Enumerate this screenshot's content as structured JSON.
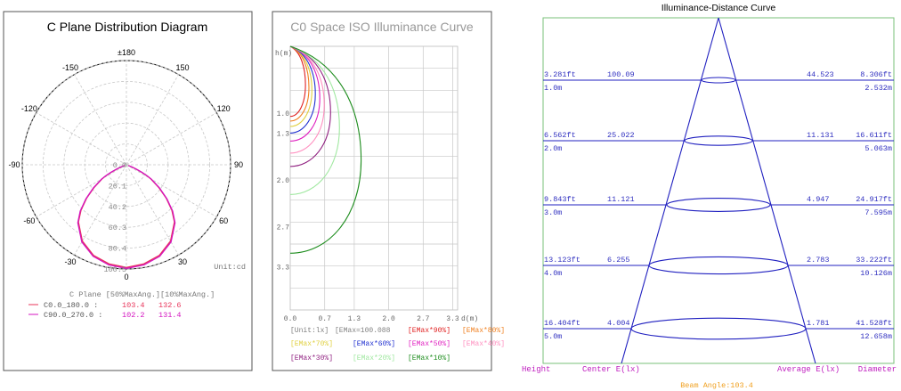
{
  "chart_data": [
    {
      "type": "polar",
      "title": "C Plane Distribution Diagram",
      "angle_labels": [
        "±180",
        "150",
        "120",
        "90",
        "60",
        "30",
        "0",
        "-30",
        "-60",
        "-90",
        "-120",
        "-150"
      ],
      "angle_values": [
        180,
        150,
        120,
        90,
        60,
        30,
        0,
        -30,
        -60,
        -90,
        -120,
        -150
      ],
      "radial_ticks": [
        "0.0",
        "20.1",
        "40.2",
        "60.3",
        "80.4",
        "100.5"
      ],
      "radial_max": 100.5,
      "unit": "Unit:cd",
      "table_header": "C Plane  [50%MaxAng.][10%MaxAng.]",
      "series": [
        {
          "name": "C0.0_180.0  :",
          "v50": "103.4",
          "v10": "132.6",
          "color": "#e8345a",
          "points": [
            [
              0,
              99
            ],
            [
              10,
              97
            ],
            [
              20,
              93
            ],
            [
              30,
              85
            ],
            [
              40,
              72
            ],
            [
              45,
              62
            ],
            [
              50,
              50
            ],
            [
              55,
              38
            ],
            [
              60,
              27
            ],
            [
              62,
              22
            ],
            [
              64,
              16
            ],
            [
              66,
              10
            ],
            [
              68,
              5
            ],
            [
              70,
              2
            ]
          ]
        },
        {
          "name": "C90.0_270.0 :",
          "v50": "102.2",
          "v10": "131.4",
          "color": "#d414c0",
          "points": [
            [
              0,
              100
            ],
            [
              10,
              98
            ],
            [
              20,
              94
            ],
            [
              30,
              86
            ],
            [
              40,
              73
            ],
            [
              45,
              63
            ],
            [
              50,
              51
            ],
            [
              55,
              39
            ],
            [
              60,
              28
            ],
            [
              62,
              23
            ],
            [
              64,
              17
            ],
            [
              66,
              11
            ],
            [
              68,
              6
            ],
            [
              70,
              2
            ]
          ]
        }
      ]
    },
    {
      "type": "line",
      "title": "C0 Space ISO Illuminance Curve",
      "ylabel": "h(m)",
      "xlabel": "d(m)",
      "xticks": [
        "0.0",
        "0.7",
        "1.3",
        "2.0",
        "2.7",
        "3.3"
      ],
      "xtick_values": [
        0,
        0.7,
        1.3,
        2.0,
        2.7,
        3.3
      ],
      "yticks": [
        "1.0",
        "1.3",
        "2.0",
        "2.7",
        "3.3"
      ],
      "ytick_values": [
        1.0,
        1.3,
        2.0,
        2.7,
        3.3
      ],
      "xlim": [
        0,
        3.4
      ],
      "ylim": [
        0,
        3.95
      ],
      "legend": [
        {
          "label": "[Unit:lx]",
          "color": "#808080"
        },
        {
          "label": "[EMax=100.088",
          "color": "#808080"
        },
        {
          "label": "[EMax*90%]",
          "color": "#e02020"
        },
        {
          "label": "[EMax*80%]",
          "color": "#f08020"
        },
        {
          "label": "[EMax*70%]",
          "color": "#e0d040"
        },
        {
          "label": "[EMax*60%]",
          "color": "#2030d0"
        },
        {
          "label": "[EMax*50%]",
          "color": "#e020c0"
        },
        {
          "label": "[EMax*40%]",
          "color": "#ff90c0"
        },
        {
          "label": "[EMax*30%]",
          "color": "#902080"
        },
        {
          "label": "[EMax*20%]",
          "color": "#a0e8a0"
        },
        {
          "label": "[EMax*10%]",
          "color": "#1c8c1c"
        }
      ],
      "series": [
        {
          "name": "EMax*90%",
          "color": "#e02020",
          "max_x": 0.31,
          "max_y": 1.05
        },
        {
          "name": "EMax*80%",
          "color": "#f08020",
          "max_x": 0.38,
          "max_y": 1.12
        },
        {
          "name": "EMax*70%",
          "color": "#e0d040",
          "max_x": 0.44,
          "max_y": 1.2
        },
        {
          "name": "EMax*60%",
          "color": "#2030d0",
          "max_x": 0.51,
          "max_y": 1.3
        },
        {
          "name": "EMax*50%",
          "color": "#e020c0",
          "max_x": 0.6,
          "max_y": 1.42
        },
        {
          "name": "EMax*40%",
          "color": "#ff90c0",
          "max_x": 0.69,
          "max_y": 1.6
        },
        {
          "name": "EMax*30%",
          "color": "#902080",
          "max_x": 0.82,
          "max_y": 1.8
        },
        {
          "name": "EMax*20%",
          "color": "#a0e8a0",
          "max_x": 1.0,
          "max_y": 2.22
        },
        {
          "name": "EMax*10%",
          "color": "#1c8c1c",
          "max_x": 1.44,
          "max_y": 3.1
        }
      ]
    },
    {
      "type": "table",
      "title": "Illuminance-Distance Curve",
      "rows": [
        {
          "ft": "3.281ft",
          "m": "1.0m",
          "center": "100.09",
          "avg": "44.523",
          "dia_ft": "8.306ft",
          "dia_m": "2.532m"
        },
        {
          "ft": "6.562ft",
          "m": "2.0m",
          "center": "25.022",
          "avg": "11.131",
          "dia_ft": "16.611ft",
          "dia_m": "5.063m"
        },
        {
          "ft": "9.843ft",
          "m": "3.0m",
          "center": "11.121",
          "avg": "4.947",
          "dia_ft": "24.917ft",
          "dia_m": "7.595m"
        },
        {
          "ft": "13.123ft",
          "m": "4.0m",
          "center": "6.255",
          "avg": "2.783",
          "dia_ft": "33.222ft",
          "dia_m": "10.126m"
        },
        {
          "ft": "16.404ft",
          "m": "5.0m",
          "center": "4.004",
          "avg": "1.781",
          "dia_ft": "41.528ft",
          "dia_m": "12.658m"
        }
      ],
      "footer": {
        "height": "Height",
        "center": "Center E(lx)",
        "avg": "Average E(lx)",
        "diameter": "Diameter",
        "beam": "Beam Angle:103.4"
      },
      "beam_angle": 103.4
    }
  ]
}
